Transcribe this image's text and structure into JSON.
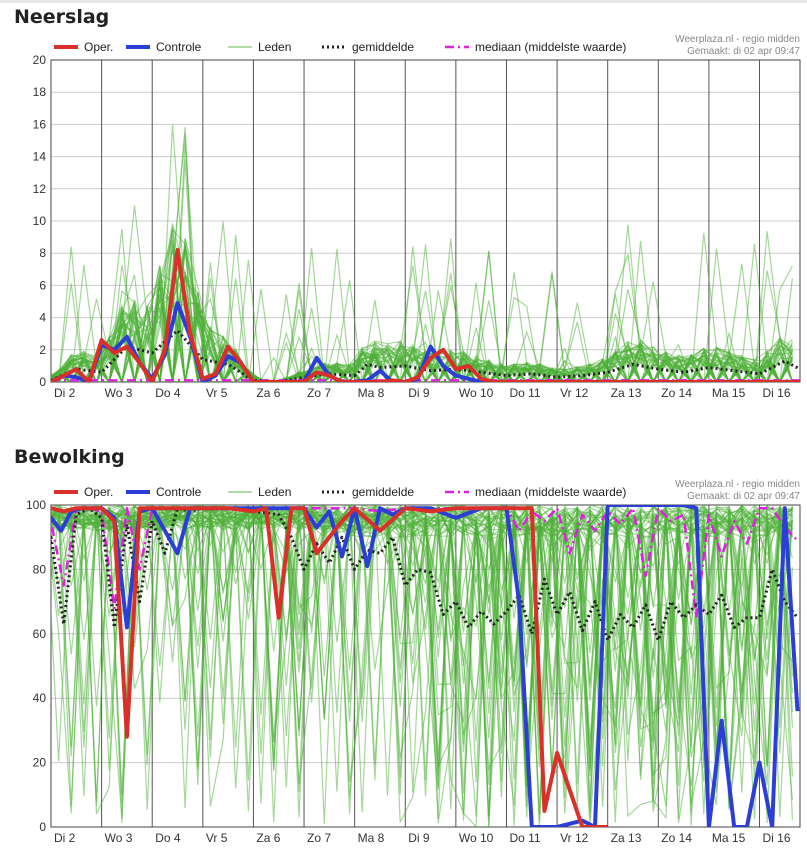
{
  "chart_data": [
    {
      "type": "line",
      "title": "Neerslag",
      "source": "Weerplaza.nl - regio midden",
      "created": "Gemaakt: di 02 apr 09:47",
      "ylim": [
        0,
        20
      ],
      "yticks": [
        0,
        2,
        4,
        6,
        8,
        10,
        12,
        14,
        16,
        18,
        20
      ],
      "day_labels": [
        "Di 2",
        "Wo 3",
        "Do 4",
        "Vr 5",
        "Za 6",
        "Zo 7",
        "Ma 8",
        "Di 9",
        "Wo 10",
        "Do 11",
        "Vr 12",
        "Za 13",
        "Zo 14",
        "Ma 15",
        "Di 16"
      ],
      "xlim": [
        0,
        14.8
      ],
      "legend": {
        "placement": "top",
        "entries": [
          {
            "label": "Oper.",
            "style": "oper"
          },
          {
            "label": "Controle",
            "style": "controle"
          },
          {
            "label": "Leden",
            "style": "leden"
          },
          {
            "label": "gemiddelde",
            "style": "mean"
          },
          {
            "label": "mediaan (middelste waarde)",
            "style": "median"
          }
        ]
      },
      "series": [
        {
          "style": "oper",
          "x": [
            0,
            0.25,
            0.5,
            0.75,
            1,
            1.25,
            1.5,
            1.75,
            2,
            2.25,
            2.5,
            2.75,
            3,
            3.25,
            3.5,
            3.75,
            4,
            4.5,
            5,
            5.25,
            5.5,
            5.75,
            6,
            6.25,
            6.5,
            6.75,
            7,
            7.25,
            7.5,
            7.75,
            8,
            8.25,
            8.5,
            8.75,
            9,
            9.5,
            10,
            11,
            12,
            13,
            14,
            14.8
          ],
          "y": [
            0,
            0.4,
            0.8,
            0,
            2.6,
            1.8,
            2.2,
            1.2,
            0,
            2,
            8.2,
            3,
            0.2,
            0.5,
            2.2,
            1.2,
            0,
            0,
            0,
            0.6,
            0.4,
            0,
            0,
            0,
            0,
            0.1,
            0,
            0.3,
            1.5,
            2,
            0.8,
            1,
            0.2,
            0,
            0,
            0,
            0,
            0,
            0,
            0,
            0,
            0
          ]
        },
        {
          "style": "controle",
          "x": [
            0,
            0.25,
            0.5,
            0.75,
            1,
            1.25,
            1.5,
            1.75,
            2,
            2.25,
            2.5,
            2.75,
            3,
            3.25,
            3.5,
            3.75,
            4,
            4.5,
            5,
            5.25,
            5.5,
            5.75,
            6,
            6.25,
            6.5,
            6.75,
            7,
            7.25,
            7.5,
            7.75,
            8,
            8.25,
            8.5,
            8.75,
            9,
            10,
            11,
            12,
            13,
            14,
            14.8
          ],
          "y": [
            0,
            0.4,
            0.3,
            0,
            2.3,
            2,
            2.8,
            1.2,
            0.2,
            1.7,
            4.9,
            2.8,
            0,
            0.4,
            1.6,
            1.2,
            0,
            0,
            0,
            1.5,
            0.4,
            0,
            0,
            0.1,
            0.7,
            0,
            0,
            0.2,
            2.2,
            1,
            0.4,
            0.2,
            0,
            0,
            0,
            0,
            0,
            0,
            0,
            0,
            0
          ]
        },
        {
          "style": "mean",
          "x": [
            0,
            0.5,
            1,
            1.5,
            2,
            2.5,
            3,
            3.5,
            4,
            4.5,
            5,
            5.5,
            6,
            6.25,
            6.5,
            7,
            7.5,
            8,
            8.5,
            9,
            9.5,
            10,
            10.5,
            11,
            11.5,
            12,
            12.5,
            13,
            13.5,
            14,
            14.5,
            14.8
          ],
          "y": [
            0.1,
            0.8,
            0.6,
            2.2,
            1.8,
            3.2,
            1.4,
            1.1,
            0.1,
            0,
            0.3,
            0.5,
            0.4,
            1.1,
            0.9,
            1,
            0.7,
            0.8,
            0.6,
            0.4,
            0.5,
            0.3,
            0.4,
            0.6,
            1.1,
            0.8,
            0.6,
            0.9,
            0.7,
            0.5,
            1.3,
            0.8
          ]
        },
        {
          "style": "median",
          "x": [
            0,
            14.8
          ],
          "y": [
            0.1,
            0.1
          ]
        }
      ]
    },
    {
      "type": "line",
      "title": "Bewolking",
      "source": "Weerplaza.nl - regio midden",
      "created": "Gemaakt: di 02 apr 09:47",
      "ylim": [
        0,
        100
      ],
      "yticks": [
        0,
        20,
        40,
        60,
        80,
        100
      ],
      "day_labels": [
        "Di 2",
        "Wo 3",
        "Do 4",
        "Vr 5",
        "Za 6",
        "Zo 7",
        "Ma 8",
        "Di 9",
        "Wo 10",
        "Do 11",
        "Vr 12",
        "Za 13",
        "Zo 14",
        "Ma 15",
        "Di 16"
      ],
      "xlim": [
        0,
        14.8
      ],
      "legend": {
        "placement": "top",
        "entries": [
          {
            "label": "Oper.",
            "style": "oper"
          },
          {
            "label": "Controle",
            "style": "controle"
          },
          {
            "label": "Leden",
            "style": "leden"
          },
          {
            "label": "gemiddelde",
            "style": "mean"
          },
          {
            "label": "mediaan (middelste waarde)",
            "style": "median"
          }
        ]
      },
      "series": [
        {
          "style": "oper",
          "x": [
            -0.35,
            -0.15,
            0,
            0.25,
            0.5,
            1,
            1.25,
            1.5,
            1.75,
            2,
            2.5,
            3,
            3.5,
            4,
            4.25,
            4.5,
            4.75,
            5,
            5.25,
            5.5,
            5.75,
            6,
            6.5,
            7,
            7.5,
            8,
            8.5,
            9,
            9.25,
            9.5,
            9.75,
            10,
            10.5,
            11
          ],
          "y": [
            48,
            99,
            99,
            98,
            99,
            99,
            95,
            28,
            99,
            99,
            99,
            99,
            99,
            98,
            99,
            65,
            99,
            99,
            85,
            90,
            95,
            99,
            92,
            99,
            98,
            99,
            99,
            99,
            99,
            99,
            5,
            23,
            0,
            0
          ]
        },
        {
          "style": "controle",
          "x": [
            -0.35,
            -0.15,
            0,
            0.2,
            0.4,
            0.6,
            1,
            1.25,
            1.5,
            1.75,
            2,
            2.25,
            2.5,
            2.75,
            3,
            3.5,
            4,
            4.5,
            5,
            5.25,
            5.5,
            5.75,
            6,
            6.25,
            6.5,
            6.75,
            7,
            7.5,
            8,
            8.5,
            9,
            9.25,
            9.5,
            10,
            10.5,
            10.75,
            11,
            11.5,
            12,
            12.25,
            12.5,
            12.75,
            13,
            13.25,
            13.5,
            13.75,
            14,
            14.25,
            14.5,
            14.75
          ],
          "y": [
            47,
            99,
            96,
            92,
            98,
            99,
            99,
            96,
            62,
            98,
            99,
            92,
            85,
            99,
            99,
            99,
            99,
            99,
            99,
            93,
            98,
            84,
            99,
            81,
            99,
            97,
            99,
            99,
            96,
            99,
            99,
            70,
            0,
            0,
            2,
            0,
            100,
            100,
            100,
            100,
            100,
            99,
            0,
            33,
            0,
            0,
            20,
            0,
            99,
            36
          ]
        },
        {
          "style": "mean",
          "x": [
            -0.35,
            0,
            0.25,
            0.5,
            0.75,
            1,
            1.25,
            1.5,
            1.75,
            2,
            2.25,
            2.5,
            2.75,
            3,
            3.5,
            4,
            4.5,
            4.75,
            5,
            5.25,
            5.5,
            5.75,
            6,
            6.25,
            6.5,
            6.75,
            7,
            7.25,
            7.5,
            7.75,
            8,
            8.25,
            8.5,
            8.75,
            9,
            9.25,
            9.5,
            9.75,
            10,
            10.25,
            10.5,
            10.75,
            11,
            11.25,
            11.5,
            11.75,
            12,
            12.25,
            12.5,
            12.75,
            13,
            13.25,
            13.5,
            13.75,
            14,
            14.25,
            14.5,
            14.75
          ],
          "y": [
            50,
            90,
            63,
            97,
            99,
            96,
            62,
            94,
            70,
            95,
            85,
            99,
            98,
            99,
            99,
            98,
            97,
            90,
            80,
            88,
            82,
            90,
            80,
            86,
            85,
            90,
            75,
            80,
            79,
            66,
            70,
            62,
            67,
            63,
            67,
            72,
            60,
            77,
            66,
            73,
            61,
            70,
            58,
            66,
            62,
            69,
            58,
            70,
            65,
            69,
            66,
            72,
            62,
            65,
            65,
            80,
            70,
            65
          ]
        },
        {
          "style": "median",
          "x": [
            -0.35,
            0,
            0.25,
            0.5,
            0.75,
            1,
            1.25,
            1.5,
            1.75,
            2,
            2.5,
            3,
            3.5,
            4,
            4.5,
            5,
            5.5,
            6,
            6.5,
            7,
            7.25,
            7.5,
            7.75,
            8,
            8.25,
            8.5,
            8.75,
            9,
            9.25,
            9.5,
            9.75,
            10,
            10.25,
            10.5,
            10.75,
            11,
            11.25,
            11.5,
            11.75,
            12,
            12.25,
            12.5,
            12.75,
            13,
            13.25,
            13.5,
            13.75,
            14,
            14.25,
            14.5,
            14.75
          ],
          "y": [
            50,
            95,
            75,
            99,
            99,
            98,
            68,
            99,
            80,
            99,
            99,
            99,
            99,
            99,
            99,
            99,
            99,
            99,
            98,
            99,
            99,
            99,
            99,
            99,
            99,
            99,
            99,
            99,
            92,
            98,
            95,
            99,
            85,
            97,
            92,
            98,
            94,
            99,
            78,
            99,
            95,
            97,
            65,
            97,
            84,
            95,
            88,
            99,
            99,
            93,
            89
          ]
        }
      ]
    }
  ]
}
